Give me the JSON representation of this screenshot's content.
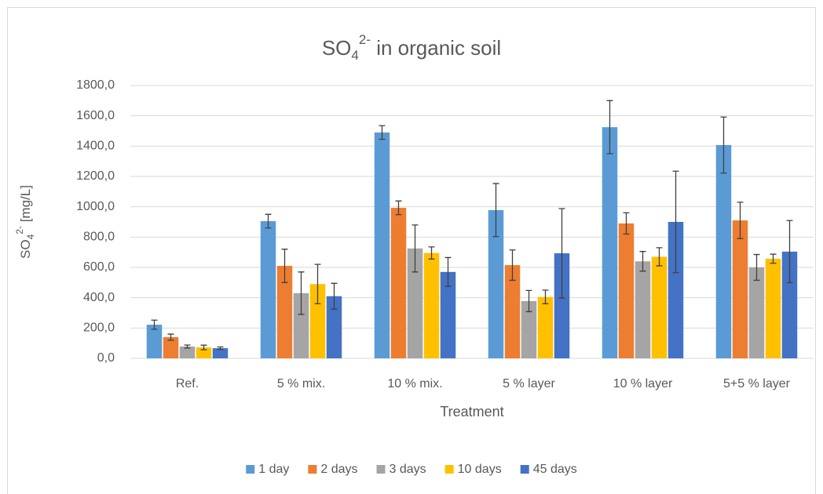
{
  "chart_data": {
    "type": "bar",
    "title": {
      "text": "SO",
      "sub": "4",
      "sup": "2-",
      "rest": " in organic soil"
    },
    "y_label": {
      "text": "SO",
      "sub": "4",
      "sup": "2-",
      "rest": "  [mg/L]"
    },
    "x_label": "Treatment",
    "categories": [
      "Ref.",
      "5 % mix.",
      "10 % mix.",
      "5 % layer",
      "10 % layer",
      "5+5 % layer"
    ],
    "series": [
      {
        "name": "1 day",
        "color": "#5b9bd5",
        "values": [
          222,
          905,
          1490,
          978,
          1525,
          1407
        ],
        "errors": [
          30,
          45,
          45,
          175,
          175,
          185
        ]
      },
      {
        "name": "2 days",
        "color": "#ed7d31",
        "values": [
          140,
          610,
          993,
          615,
          890,
          910
        ],
        "errors": [
          20,
          110,
          45,
          100,
          70,
          120
        ]
      },
      {
        "name": "3 days",
        "color": "#a5a5a5",
        "values": [
          78,
          430,
          725,
          378,
          640,
          600
        ],
        "errors": [
          10,
          140,
          155,
          70,
          65,
          85
        ]
      },
      {
        "name": "10 days",
        "color": "#ffc000",
        "values": [
          72,
          490,
          695,
          405,
          670,
          657
        ],
        "errors": [
          15,
          130,
          40,
          45,
          60,
          30
        ]
      },
      {
        "name": "45 days",
        "color": "#4472c4",
        "values": [
          67,
          410,
          570,
          693,
          900,
          704
        ],
        "errors": [
          8,
          85,
          95,
          295,
          335,
          205
        ]
      }
    ],
    "ylim": [
      0,
      1800
    ],
    "yticks": [
      {
        "value": 0,
        "label": "0,0"
      },
      {
        "value": 200,
        "label": "200,0"
      },
      {
        "value": 400,
        "label": "400,0"
      },
      {
        "value": 600,
        "label": "600,0"
      },
      {
        "value": 800,
        "label": "800,0"
      },
      {
        "value": 1000,
        "label": "1000,0"
      },
      {
        "value": 1200,
        "label": "1200,0"
      },
      {
        "value": 1400,
        "label": "1400,0"
      },
      {
        "value": 1600,
        "label": "1600,0"
      },
      {
        "value": 1800,
        "label": "1800,0"
      }
    ],
    "grid": true,
    "legend": "bottom",
    "error_color": "#404040"
  }
}
